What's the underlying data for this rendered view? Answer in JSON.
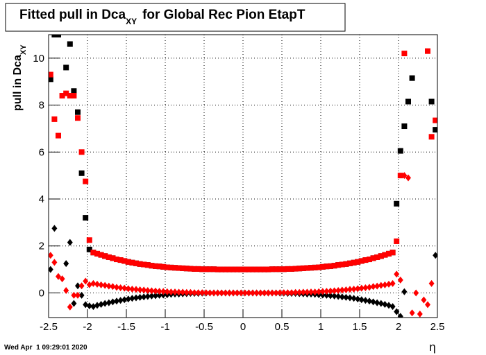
{
  "chart_data": {
    "type": "scatter",
    "title": "Fitted pull in Dca",
    "title_sub": "XY",
    "title_end": "for Global Rec Pion EtapT",
    "ylabel": "pull in Dca",
    "ylabel_sub": "XY",
    "xlabel": "η",
    "timestamp": "Wed Apr  1 09:29:01 2020",
    "grid": true,
    "xlim": [
      -2.5,
      2.5
    ],
    "ylim": [
      -1.05,
      11
    ],
    "xticks": [
      -2.5,
      -2,
      -1.5,
      -1,
      -0.5,
      0,
      0.5,
      1,
      1.5,
      2,
      2.5
    ],
    "yticks": [
      0,
      2,
      4,
      6,
      8,
      10
    ],
    "x": [
      -2.475,
      -2.425,
      -2.375,
      -2.325,
      -2.275,
      -2.225,
      -2.175,
      -2.125,
      -2.075,
      -2.025,
      -1.975,
      -1.925,
      -1.875,
      -1.825,
      -1.775,
      -1.725,
      -1.675,
      -1.625,
      -1.575,
      -1.525,
      -1.475,
      -1.425,
      -1.375,
      -1.325,
      -1.275,
      -1.225,
      -1.175,
      -1.125,
      -1.075,
      -1.025,
      -0.975,
      -0.925,
      -0.875,
      -0.825,
      -0.775,
      -0.725,
      -0.675,
      -0.625,
      -0.575,
      -0.525,
      -0.475,
      -0.425,
      -0.375,
      -0.325,
      -0.275,
      -0.225,
      -0.175,
      -0.125,
      -0.075,
      -0.025,
      0.025,
      0.075,
      0.125,
      0.175,
      0.225,
      0.275,
      0.325,
      0.375,
      0.425,
      0.475,
      0.525,
      0.575,
      0.625,
      0.675,
      0.725,
      0.775,
      0.825,
      0.875,
      0.925,
      0.975,
      1.025,
      1.075,
      1.125,
      1.175,
      1.225,
      1.275,
      1.325,
      1.375,
      1.425,
      1.475,
      1.525,
      1.575,
      1.625,
      1.675,
      1.725,
      1.775,
      1.825,
      1.875,
      1.925,
      1.975,
      2.025,
      2.075,
      2.125,
      2.175,
      2.225,
      2.275,
      2.325,
      2.375,
      2.425,
      2.475
    ],
    "series": [
      {
        "color": "#000000",
        "marker": "square",
        "values": [
          9.1,
          11.0,
          11.0,
          null,
          9.6,
          10.6,
          8.6,
          7.7,
          5.1,
          3.2,
          1.85,
          1.72,
          1.67,
          1.62,
          1.57,
          1.52,
          1.48,
          1.43,
          1.4,
          1.36,
          1.32,
          1.29,
          1.26,
          1.23,
          1.21,
          1.19,
          1.16,
          1.14,
          1.13,
          1.11,
          1.09,
          1.08,
          1.07,
          1.06,
          1.05,
          1.04,
          1.03,
          1.02,
          1.02,
          1.01,
          1.01,
          1.01,
          1.01,
          1.0,
          1.0,
          1.0,
          1.0,
          1.0,
          1.0,
          1.0,
          1.0,
          1.0,
          1.0,
          1.0,
          1.0,
          1.0,
          1.0,
          1.01,
          1.01,
          1.01,
          1.01,
          1.02,
          1.02,
          1.03,
          1.04,
          1.05,
          1.06,
          1.07,
          1.08,
          1.09,
          1.11,
          1.13,
          1.14,
          1.16,
          1.19,
          1.21,
          1.23,
          1.26,
          1.29,
          1.32,
          1.36,
          1.4,
          1.43,
          1.48,
          1.52,
          1.57,
          1.62,
          1.67,
          1.72,
          3.8,
          6.05,
          7.1,
          8.15,
          9.15,
          null,
          null,
          null,
          null,
          8.15,
          6.95
        ]
      },
      {
        "color": "#000000",
        "marker": "diamond",
        "values": [
          1.0,
          2.75,
          null,
          null,
          1.25,
          2.15,
          -0.45,
          0.3,
          -0.1,
          -0.5,
          -0.55,
          -0.58,
          -0.53,
          -0.49,
          -0.45,
          -0.42,
          -0.38,
          -0.35,
          -0.32,
          -0.29,
          -0.26,
          -0.23,
          -0.21,
          -0.19,
          -0.17,
          -0.15,
          -0.13,
          -0.12,
          -0.1,
          -0.09,
          -0.08,
          -0.06,
          -0.05,
          -0.05,
          -0.04,
          -0.03,
          -0.02,
          -0.02,
          -0.02,
          -0.01,
          -0.01,
          0,
          0,
          0,
          0,
          0,
          0,
          0,
          0,
          0,
          0,
          0,
          0,
          0,
          0,
          0,
          0,
          0,
          0,
          -0.01,
          -0.01,
          -0.02,
          -0.02,
          -0.02,
          -0.03,
          -0.04,
          -0.05,
          -0.05,
          -0.06,
          -0.08,
          -0.09,
          -0.1,
          -0.12,
          -0.13,
          -0.15,
          -0.17,
          -0.19,
          -0.21,
          -0.23,
          -0.26,
          -0.29,
          -0.32,
          -0.35,
          -0.38,
          -0.42,
          -0.45,
          -0.49,
          -0.53,
          -0.58,
          -0.8,
          -1.0,
          0.05,
          null,
          null,
          null,
          null,
          null,
          null,
          null,
          1.6
        ]
      },
      {
        "color": "#ff0000",
        "marker": "square",
        "values": [
          9.3,
          7.4,
          6.7,
          8.4,
          8.5,
          8.4,
          8.4,
          7.45,
          6.0,
          4.75,
          2.25,
          1.72,
          1.67,
          1.62,
          1.57,
          1.52,
          1.48,
          1.43,
          1.4,
          1.36,
          1.32,
          1.29,
          1.26,
          1.23,
          1.21,
          1.19,
          1.16,
          1.14,
          1.13,
          1.11,
          1.09,
          1.08,
          1.07,
          1.06,
          1.05,
          1.04,
          1.03,
          1.02,
          1.02,
          1.01,
          1.01,
          1.01,
          1.01,
          1.0,
          1.0,
          1.0,
          1.0,
          1.0,
          1.0,
          1.0,
          1.0,
          1.0,
          1.0,
          1.0,
          1.0,
          1.0,
          1.0,
          1.01,
          1.01,
          1.01,
          1.01,
          1.02,
          1.02,
          1.03,
          1.04,
          1.05,
          1.06,
          1.07,
          1.08,
          1.09,
          1.11,
          1.13,
          1.14,
          1.16,
          1.19,
          1.21,
          1.23,
          1.26,
          1.29,
          1.32,
          1.36,
          1.4,
          1.43,
          1.48,
          1.52,
          1.57,
          1.62,
          1.67,
          1.72,
          2.2,
          5.0,
          10.2,
          null,
          null,
          null,
          null,
          null,
          10.3,
          6.65,
          7.35
        ]
      },
      {
        "color": "#ff0000",
        "marker": "diamond",
        "values": [
          1.6,
          1.3,
          0.7,
          0.6,
          0.1,
          -0.6,
          -0.1,
          -0.1,
          0.3,
          0.5,
          0.35,
          0.4,
          0.37,
          0.34,
          0.32,
          0.29,
          0.27,
          0.24,
          0.22,
          0.2,
          0.18,
          0.16,
          0.15,
          0.13,
          0.12,
          0.1,
          0.09,
          0.08,
          0.07,
          0.06,
          0.05,
          0.04,
          0.04,
          0.03,
          0.03,
          0.02,
          0.02,
          0.01,
          0.01,
          0.01,
          0.01,
          0,
          0,
          0,
          0,
          0,
          0,
          0,
          0,
          0,
          0,
          0,
          0,
          0,
          0,
          0,
          0,
          0,
          0,
          0.01,
          0.01,
          0.01,
          0.01,
          0.02,
          0.02,
          0.03,
          0.03,
          0.04,
          0.04,
          0.05,
          0.06,
          0.07,
          0.08,
          0.09,
          0.1,
          0.12,
          0.13,
          0.15,
          0.16,
          0.18,
          0.2,
          0.22,
          0.24,
          0.27,
          0.29,
          0.32,
          0.34,
          0.37,
          0.4,
          0.8,
          0.55,
          5.0,
          4.9,
          -0.85,
          0.0,
          -0.9,
          -0.3,
          -0.5,
          0.4,
          null
        ]
      }
    ]
  }
}
